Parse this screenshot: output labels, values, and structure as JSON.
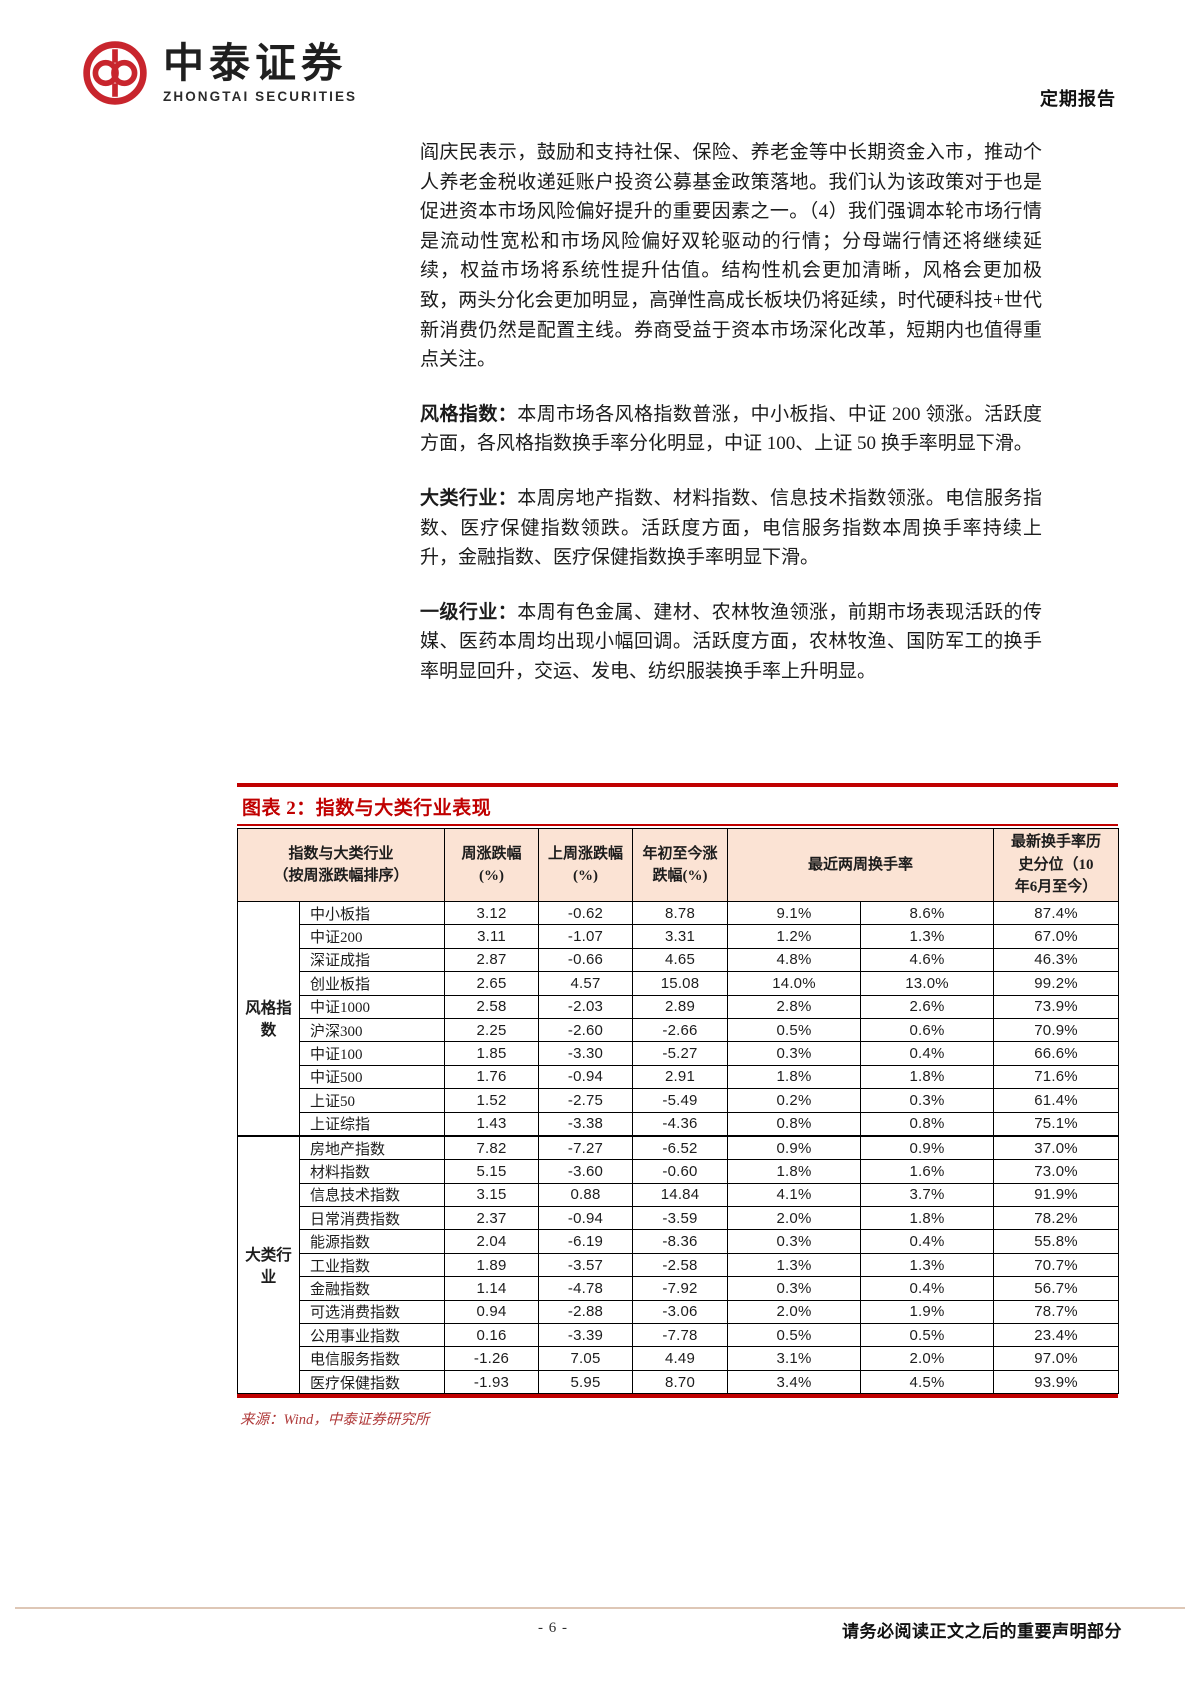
{
  "colors": {
    "accent_red": "#C00000",
    "table_header_bg": "#FBE3D4",
    "logo_red": "#C8252D",
    "footer_line": "#DEC7B6",
    "source_red": "#B03B3B"
  },
  "header": {
    "logo_cn": "中泰证券",
    "logo_en": "ZHONGTAI SECURITIES",
    "report_type": "定期报告"
  },
  "body": {
    "para1": "阎庆民表示，鼓励和支持社保、保险、养老金等中长期资金入市，推动个人养老金税收递延账户投资公募基金政策落地。我们认为该政策对于也是促进资本市场风险偏好提升的重要因素之一。（4）我们强调本轮市场行情是流动性宽松和市场风险偏好双轮驱动的行情；分母端行情还将继续延续，权益市场将系统性提升估值。结构性机会更加清晰，风格会更加极致，两头分化会更加明显，高弹性高成长板块仍将延续，时代硬科技+世代新消费仍然是配置主线。券商受益于资本市场深化改革，短期内也值得重点关注。",
    "sections": [
      {
        "label": "风格指数：",
        "text": "本周市场各风格指数普涨，中小板指、中证 200 领涨。活跃度方面，各风格指数换手率分化明显，中证 100、上证 50 换手率明显下滑。"
      },
      {
        "label": "大类行业：",
        "text": "本周房地产指数、材料指数、信息技术指数领涨。电信服务指数、医疗保健指数领跌。活跃度方面，电信服务指数本周换手率持续上升，金融指数、医疗保健指数换手率明显下滑。"
      },
      {
        "label": "一级行业：",
        "text": "本周有色金属、建材、农林牧渔领涨，前期市场表现活跃的传媒、医药本周均出现小幅回调。活跃度方面，农林牧渔、国防军工的换手率明显回升，交运、发电、纺织服装换手率上升明显。"
      }
    ]
  },
  "figure": {
    "title": "图表 2：指数与大类行业表现",
    "source": "来源：Wind，中泰证券研究所",
    "table": {
      "headers": {
        "index_group": "指数与大类行业\n（按周涨跌幅排序）",
        "week_chg": "周涨跌幅\n(%)",
        "last_week_chg": "上周涨跌幅\n(%)",
        "ytd_chg": "年初至今涨\n跌幅(%)",
        "two_week_turnover": "最近两周换手率",
        "turnover_percentile": "最新换手率历\n史分位（10\n年6月至今）"
      },
      "groups": [
        {
          "name": "风格指数",
          "rows": [
            [
              "中小板指",
              "3.12",
              "-0.62",
              "8.78",
              "9.1%",
              "8.6%",
              "87.4%"
            ],
            [
              "中证200",
              "3.11",
              "-1.07",
              "3.31",
              "1.2%",
              "1.3%",
              "67.0%"
            ],
            [
              "深证成指",
              "2.87",
              "-0.66",
              "4.65",
              "4.8%",
              "4.6%",
              "46.3%"
            ],
            [
              "创业板指",
              "2.65",
              "4.57",
              "15.08",
              "14.0%",
              "13.0%",
              "99.2%"
            ],
            [
              "中证1000",
              "2.58",
              "-2.03",
              "2.89",
              "2.8%",
              "2.6%",
              "73.9%"
            ],
            [
              "沪深300",
              "2.25",
              "-2.60",
              "-2.66",
              "0.5%",
              "0.6%",
              "70.9%"
            ],
            [
              "中证100",
              "1.85",
              "-3.30",
              "-5.27",
              "0.3%",
              "0.4%",
              "66.6%"
            ],
            [
              "中证500",
              "1.76",
              "-0.94",
              "2.91",
              "1.8%",
              "1.8%",
              "71.6%"
            ],
            [
              "上证50",
              "1.52",
              "-2.75",
              "-5.49",
              "0.2%",
              "0.3%",
              "61.4%"
            ],
            [
              "上证综指",
              "1.43",
              "-3.38",
              "-4.36",
              "0.8%",
              "0.8%",
              "75.1%"
            ]
          ]
        },
        {
          "name": "大类行业",
          "rows": [
            [
              "房地产指数",
              "7.82",
              "-7.27",
              "-6.52",
              "0.9%",
              "0.9%",
              "37.0%"
            ],
            [
              "材料指数",
              "5.15",
              "-3.60",
              "-0.60",
              "1.8%",
              "1.6%",
              "73.0%"
            ],
            [
              "信息技术指数",
              "3.15",
              "0.88",
              "14.84",
              "4.1%",
              "3.7%",
              "91.9%"
            ],
            [
              "日常消费指数",
              "2.37",
              "-0.94",
              "-3.59",
              "2.0%",
              "1.8%",
              "78.2%"
            ],
            [
              "能源指数",
              "2.04",
              "-6.19",
              "-8.36",
              "0.3%",
              "0.4%",
              "55.8%"
            ],
            [
              "工业指数",
              "1.89",
              "-3.57",
              "-2.58",
              "1.3%",
              "1.3%",
              "70.7%"
            ],
            [
              "金融指数",
              "1.14",
              "-4.78",
              "-7.92",
              "0.3%",
              "0.4%",
              "56.7%"
            ],
            [
              "可选消费指数",
              "0.94",
              "-2.88",
              "-3.06",
              "2.0%",
              "1.9%",
              "78.7%"
            ],
            [
              "公用事业指数",
              "0.16",
              "-3.39",
              "-7.78",
              "0.5%",
              "0.5%",
              "23.4%"
            ],
            [
              "电信服务指数",
              "-1.26",
              "7.05",
              "4.49",
              "3.1%",
              "2.0%",
              "97.0%"
            ],
            [
              "医疗保健指数",
              "-1.93",
              "5.95",
              "8.70",
              "3.4%",
              "4.5%",
              "93.9%"
            ]
          ]
        }
      ]
    }
  },
  "footer": {
    "page_number": "- 6 -",
    "disclaimer": "请务必阅读正文之后的重要声明部分"
  }
}
